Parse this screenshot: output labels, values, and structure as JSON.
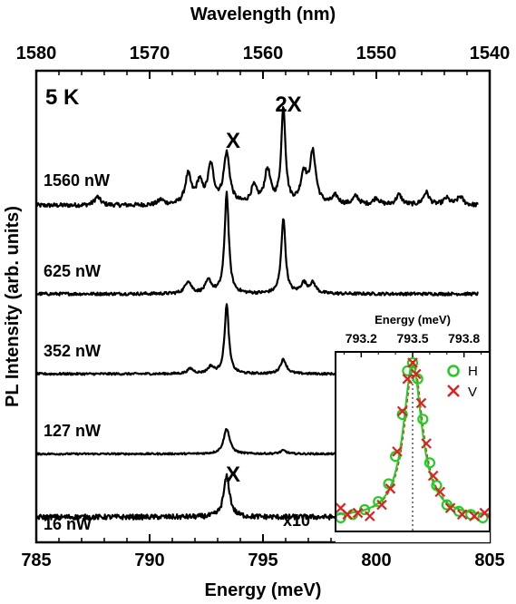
{
  "chart_data": [
    {
      "type": "line",
      "name": "main",
      "xlabel": "Energy (meV)",
      "x2label": "Wavelength (nm)",
      "ylabel": "PL Intensity (arb. units)",
      "xlim": [
        785,
        805
      ],
      "x2lim": [
        1580,
        1540
      ],
      "xticks": [
        "785",
        "790",
        "795",
        "800",
        "805"
      ],
      "x2ticks": [
        "1580",
        "1570",
        "1560",
        "1550",
        "1540"
      ],
      "temperature": "5 K",
      "annotations": {
        "exciton": "X",
        "biexciton": "2X",
        "scale": "x10"
      },
      "peaks": {
        "X": 793.4,
        "2X": 795.9
      },
      "series": [
        {
          "name": "1560 nW",
          "x_range": [
            785,
            804.5
          ],
          "offset": 4.0,
          "peaks": [
            [
              787.7,
              0.1
            ],
            [
              790.5,
              0.06
            ],
            [
              791.7,
              0.35
            ],
            [
              792.2,
              0.25
            ],
            [
              792.7,
              0.45
            ],
            [
              793.4,
              0.6
            ],
            [
              794.6,
              0.2
            ],
            [
              795.2,
              0.4
            ],
            [
              795.9,
              1.15
            ],
            [
              796.8,
              0.35
            ],
            [
              797.2,
              0.6
            ],
            [
              798.2,
              0.1
            ],
            [
              799.1,
              0.1
            ],
            [
              800.0,
              0.08
            ],
            [
              801.0,
              0.12
            ],
            [
              802.2,
              0.15
            ],
            [
              803.1,
              0.08
            ],
            [
              803.7,
              0.1
            ]
          ]
        },
        {
          "name": "625 nW",
          "x_range": [
            785,
            804.5
          ],
          "offset": 2.95,
          "peaks": [
            [
              791.7,
              0.15
            ],
            [
              792.6,
              0.15
            ],
            [
              793.4,
              1.2
            ],
            [
              795.9,
              0.9
            ],
            [
              796.8,
              0.12
            ],
            [
              797.2,
              0.12
            ]
          ]
        },
        {
          "name": "352 nW",
          "x_range": [
            785,
            798.2
          ],
          "offset": 2.0,
          "peaks": [
            [
              791.8,
              0.06
            ],
            [
              792.7,
              0.08
            ],
            [
              793.4,
              0.82
            ],
            [
              795.9,
              0.17
            ]
          ]
        },
        {
          "name": "127 nW",
          "x_range": [
            785,
            798.2
          ],
          "offset": 1.05,
          "peaks": [
            [
              793.4,
              0.3
            ],
            [
              795.9,
              0.04
            ]
          ]
        },
        {
          "name": "16 nW",
          "x_range": [
            785,
            798.2
          ],
          "offset": 0.3,
          "peaks": [
            [
              793.4,
              0.48
            ]
          ]
        }
      ]
    },
    {
      "type": "scatter",
      "name": "inset",
      "xlabel": "Energy (meV)",
      "xlim": [
        793.05,
        793.95
      ],
      "xticks": [
        "793.2",
        "793.5",
        "793.8"
      ],
      "center": 793.5,
      "legend": [
        "H",
        "V"
      ],
      "colors": {
        "H": "#22cc22",
        "V": "#e02020",
        "fit_H": "#22cc22",
        "fit_V": "#e02020"
      },
      "series": [
        {
          "name": "H",
          "x": [
            793.08,
            793.15,
            793.22,
            793.3,
            793.36,
            793.4,
            793.44,
            793.47,
            793.5,
            793.53,
            793.56,
            793.6,
            793.64,
            793.7,
            793.77,
            793.84,
            793.91
          ],
          "y": [
            0.04,
            0.06,
            0.09,
            0.14,
            0.25,
            0.42,
            0.68,
            0.95,
            1.0,
            0.9,
            0.65,
            0.38,
            0.24,
            0.12,
            0.08,
            0.06,
            0.04
          ]
        },
        {
          "name": "V",
          "x": [
            793.08,
            793.12,
            793.18,
            793.25,
            793.32,
            793.37,
            793.41,
            793.44,
            793.47,
            793.5,
            793.52,
            793.55,
            793.58,
            793.62,
            793.66,
            793.72,
            793.79,
            793.86,
            793.92
          ],
          "y": [
            0.1,
            0.06,
            0.07,
            0.05,
            0.12,
            0.22,
            0.45,
            0.7,
            0.9,
            1.0,
            0.93,
            0.75,
            0.5,
            0.3,
            0.2,
            0.1,
            0.06,
            0.05,
            0.07
          ]
        }
      ]
    }
  ]
}
